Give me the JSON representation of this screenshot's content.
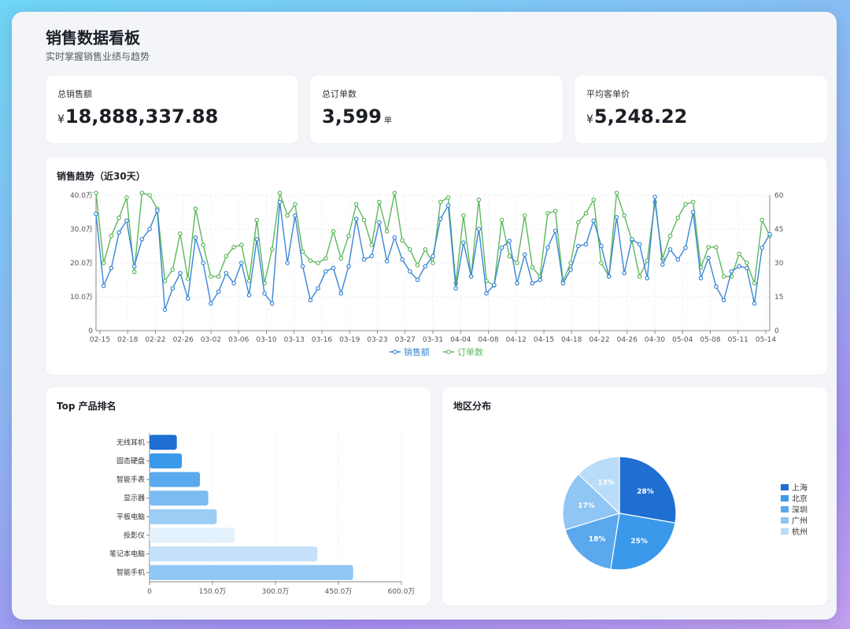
{
  "header": {
    "title": "销售数据看板",
    "subtitle": "实时掌握销售业绩与趋势"
  },
  "kpis": [
    {
      "label": "总销售额",
      "prefix": "¥",
      "value": "18,888,337.88",
      "unit": ""
    },
    {
      "label": "总订单数",
      "prefix": "",
      "value": "3,599",
      "unit": "单"
    },
    {
      "label": "平均客单价",
      "prefix": "¥",
      "value": "5,248.22",
      "unit": ""
    }
  ],
  "colors": {
    "sales": "#3a86d4",
    "orders": "#5cb85c",
    "bars": [
      "#1e6fd1",
      "#3a99ea",
      "#5aa8ee",
      "#7bbdf2",
      "#9bcdf5",
      "#e3f1fd",
      "#c5e2fa",
      "#8fc6f3"
    ],
    "pie": [
      "#1e6fd1",
      "#3a99ea",
      "#5aa8ee",
      "#90c6f4",
      "#b9dcf8"
    ]
  },
  "chart_data": [
    {
      "type": "line",
      "title": "销售趋势（近30天）",
      "x_tick_labels": [
        "02-15",
        "02-18",
        "02-22",
        "02-26",
        "03-02",
        "03-06",
        "03-10",
        "03-13",
        "03-16",
        "03-19",
        "03-23",
        "03-27",
        "03-31",
        "04-04",
        "04-08",
        "04-12",
        "04-15",
        "04-18",
        "04-22",
        "04-26",
        "04-30",
        "05-04",
        "05-08",
        "05-11",
        "05-14"
      ],
      "y_left_ticks": [
        "0",
        "10.0万",
        "20.0万",
        "30.0万",
        "40.0万"
      ],
      "y_left_range": [
        0,
        40
      ],
      "y_right_ticks": [
        "0",
        "15",
        "30",
        "45",
        "60"
      ],
      "y_right_range": [
        0,
        60
      ],
      "grid": true,
      "legend_position": "bottom",
      "series": [
        {
          "name": "销售额",
          "axis": "left",
          "values": [
            34.5,
            13.2,
            18.5,
            29,
            32.5,
            19,
            27,
            30,
            35.5,
            6.2,
            12.5,
            17,
            9.5,
            27.5,
            20,
            8,
            11.5,
            17,
            14,
            20,
            10.5,
            27,
            11,
            8,
            38,
            20,
            34,
            19,
            9,
            12.5,
            17.5,
            18.5,
            11,
            19,
            33,
            21,
            22,
            32,
            20.5,
            27.5,
            21,
            17.5,
            15,
            19,
            22,
            33,
            37,
            12.5,
            26,
            16,
            30,
            11,
            13.5,
            24.5,
            26.5,
            14,
            22.5,
            14,
            15,
            24.5,
            29.5,
            14,
            18,
            25,
            25.5,
            32.5,
            25,
            16,
            33.5,
            17,
            27,
            25.5,
            15.5,
            39.5,
            19.5,
            24,
            21,
            24.5,
            35,
            15.5,
            21.5,
            13,
            9,
            17.5,
            19,
            18.5,
            8,
            24.5,
            28.5
          ]
        },
        {
          "name": "订单数",
          "axis": "right",
          "values": [
            61,
            30,
            42,
            50,
            59,
            26,
            61,
            60,
            54,
            22,
            27,
            43,
            23,
            54,
            38,
            24,
            24,
            33,
            37,
            38,
            22,
            49,
            21,
            36,
            61,
            51,
            56,
            35,
            31,
            30,
            32,
            44,
            32,
            42,
            56,
            49,
            38,
            57,
            44,
            61,
            40,
            36,
            29,
            36,
            30,
            57,
            59,
            21,
            51,
            24,
            58,
            22,
            20,
            49,
            33,
            30,
            51,
            28,
            24,
            52,
            53,
            22,
            30,
            48,
            52,
            58,
            30,
            24,
            61,
            51,
            40,
            24,
            31,
            57,
            32,
            42,
            50,
            56,
            57,
            28,
            37,
            37,
            24,
            24,
            34,
            30,
            21,
            49,
            42
          ]
        }
      ]
    },
    {
      "type": "bar",
      "title": "Top 产品排名",
      "orientation": "horizontal",
      "categories": [
        "无线耳机",
        "固态硬盘",
        "智能手表",
        "显示器",
        "平板电脑",
        "投影仪",
        "笔记本电脑",
        "智能手机"
      ],
      "values": [
        65,
        77,
        120,
        140,
        160,
        203,
        400,
        485
      ],
      "x_tick_labels": [
        "0",
        "150.0万",
        "300.0万",
        "450.0万",
        "600.0万"
      ],
      "xlim": [
        0,
        600
      ],
      "grid": true
    },
    {
      "type": "pie",
      "title": "地区分布",
      "labels": [
        "上海",
        "北京",
        "深圳",
        "广州",
        "杭州"
      ],
      "values": [
        28,
        25,
        18,
        17,
        13
      ],
      "display_labels": [
        "28%",
        "25%",
        "18%",
        "17%",
        "13%"
      ],
      "legend_position": "right"
    }
  ]
}
